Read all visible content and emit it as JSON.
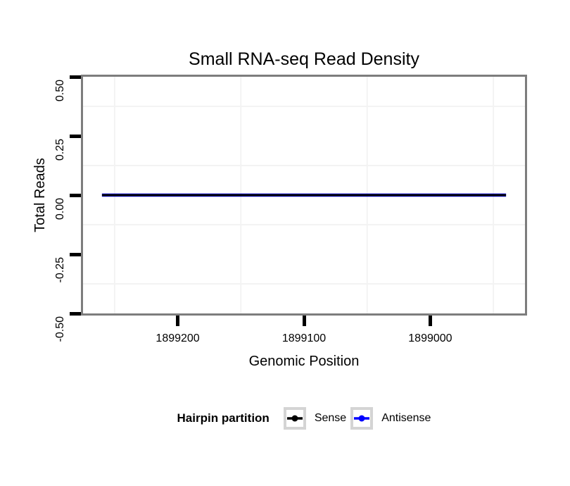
{
  "figure": {
    "background": "#ffffff"
  },
  "chart_data": {
    "type": "line",
    "title": "Small RNA-seq Read Density",
    "xlabel": "Genomic Position",
    "ylabel": "Total Reads",
    "x_axis": {
      "reversed": true,
      "range": [
        1899275,
        1898925
      ],
      "ticks": [
        1899200,
        1899100,
        1899000
      ],
      "tick_labels": [
        "1899200",
        "1899100",
        "1899000"
      ],
      "minor_gridlines": [
        1899250,
        1899150,
        1899050,
        1898950
      ]
    },
    "y_axis": {
      "range": [
        0.5,
        -0.5
      ],
      "ticks": [
        0.5,
        0.25,
        0,
        -0.25,
        -0.5
      ],
      "tick_labels": [
        "0.50",
        "0.25",
        "0.00",
        "-0.25",
        "-0.50"
      ],
      "minor_gridlines": [
        0.375,
        0.125,
        -0.125,
        -0.375
      ]
    },
    "grid": {
      "major_visible": false,
      "minor_visible": true
    },
    "series": [
      {
        "name": "Sense",
        "color": "#000000",
        "x": [
          1899260,
          1898940
        ],
        "y": [
          0,
          0
        ]
      },
      {
        "name": "Antisense",
        "color": "#0000ff",
        "x": [
          1899260,
          1898940
        ],
        "y": [
          0,
          0
        ]
      }
    ],
    "legend": {
      "title": "Hairpin partition",
      "position": "bottom",
      "entries": [
        {
          "label": "Sense",
          "color": "#000000"
        },
        {
          "label": "Antisense",
          "color": "#0000ff"
        }
      ]
    }
  },
  "colors": {
    "panel_border": "#7d7d7d",
    "grid_minor": "#f3f3f3",
    "tick": "#000000",
    "legend_key_border": "#d4d4d4",
    "text": "#000000"
  }
}
